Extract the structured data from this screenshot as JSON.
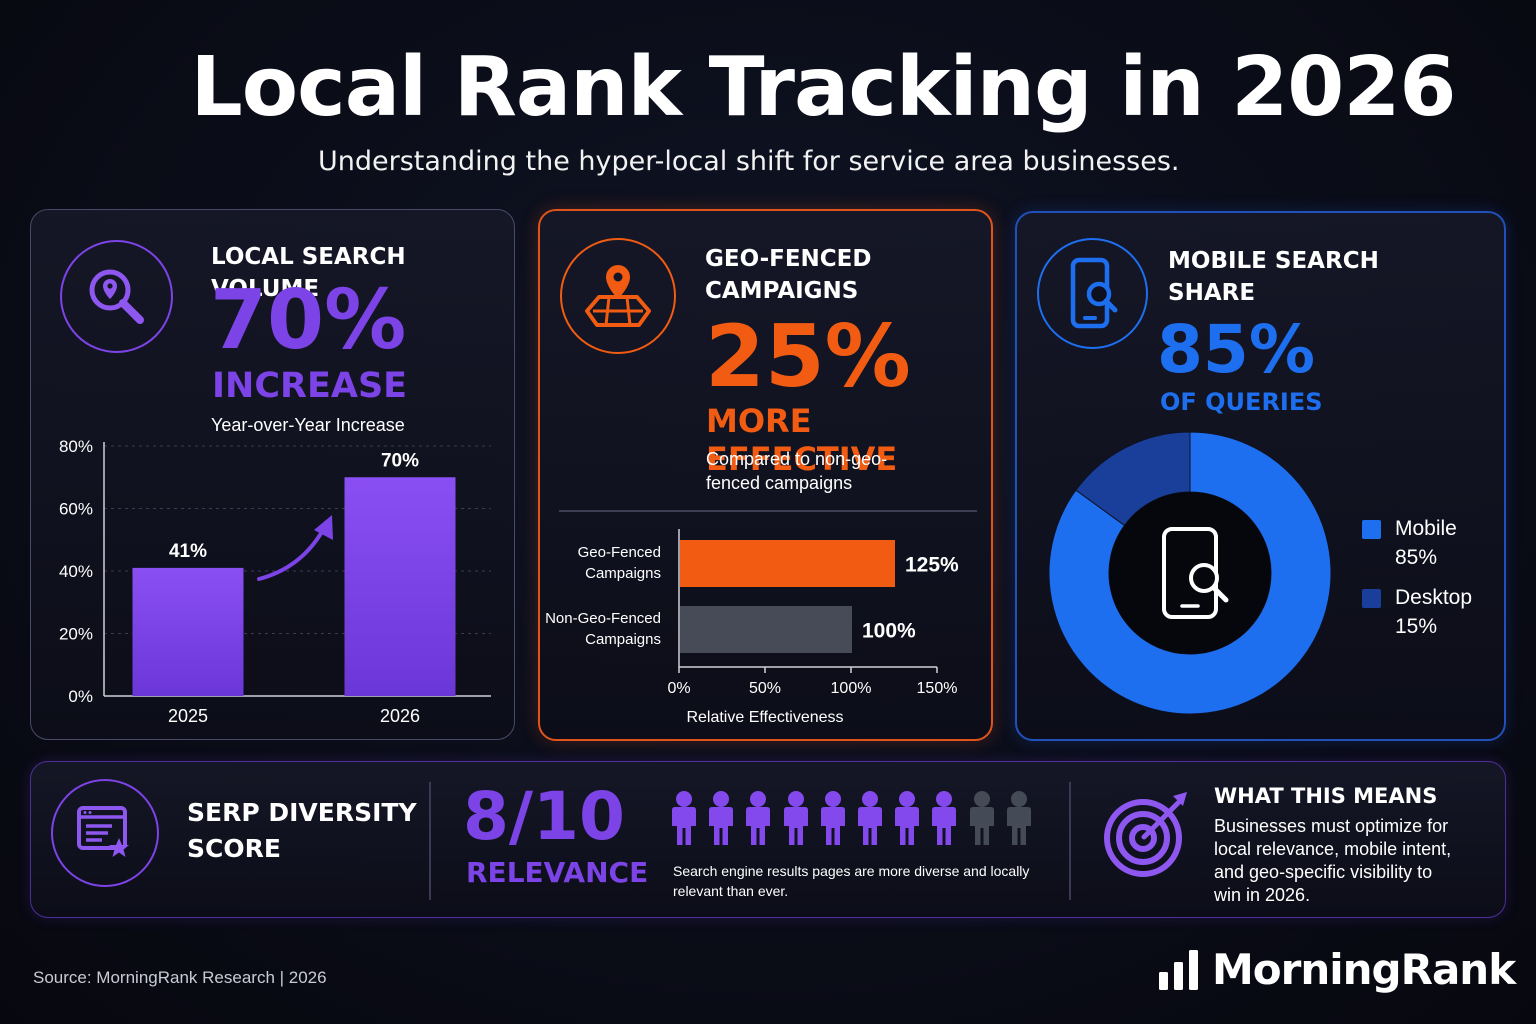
{
  "header": {
    "title": "Local Rank Tracking in 2026",
    "subtitle": "Understanding the hyper-local shift for service area businesses."
  },
  "colors": {
    "purple": "#7c43e6",
    "orange": "#f25c12",
    "blue": "#1e6ff0",
    "dark_blue": "#1a3f9a",
    "gray_bar": "#474b57"
  },
  "search_volume": {
    "icon": "search-location-icon",
    "heading": "LOCAL SEARCH VOLUME",
    "big_value": "70%",
    "big_label": "INCREASE",
    "note": "Year-over-Year Increase"
  },
  "geo_fenced": {
    "icon": "map-pin-icon",
    "heading_line1": "GEO-FENCED",
    "heading_line2": "CAMPAIGNS",
    "big_value": "25%",
    "big_label": "MORE EFFECTIVE",
    "note_line1": "Compared to non-geo-",
    "note_line2": "fenced campaigns"
  },
  "mobile": {
    "icon": "mobile-search-icon",
    "heading_line1": "MOBILE SEARCH",
    "heading_line2": "SHARE",
    "big_value": "85%",
    "big_label": "OF QUERIES"
  },
  "serp": {
    "icon": "browser-star-icon",
    "heading_line1": "SERP DIVERSITY",
    "heading_line2": "SCORE",
    "big_value": "8/10",
    "big_label": "RELEVANCE",
    "score": 8,
    "total": 10,
    "note_line1": "Search engine results pages are more diverse and locally",
    "note_line2": "relevant than ever."
  },
  "means": {
    "icon": "target-icon",
    "heading": "WHAT THIS MEANS",
    "line1": "Businesses must optimize for",
    "line2": "local relevance, mobile intent,",
    "line3": "and geo-specific visibility to",
    "line4": "win in 2026."
  },
  "footer": {
    "source": "Source: MorningRank Research  |  2026",
    "brand": "MorningRank",
    "brand_icon": "bar-chart-logo-icon"
  },
  "chart_data": [
    {
      "type": "bar",
      "categories": [
        "2025",
        "2026"
      ],
      "values": [
        41,
        70
      ],
      "data_labels": [
        "41%",
        "70%"
      ],
      "yticks": [
        "0%",
        "20%",
        "40%",
        "60%",
        "80%"
      ],
      "ylim": [
        0,
        80
      ],
      "grid": true
    },
    {
      "type": "bar",
      "orientation": "horizontal",
      "categories": [
        [
          "Geo-Fenced",
          "Campaigns"
        ],
        [
          "Non-Geo-Fenced",
          "Campaigns"
        ]
      ],
      "values": [
        125,
        100
      ],
      "data_labels": [
        "125%",
        "100%"
      ],
      "xticks": [
        "0%",
        "50%",
        "100%",
        "150%"
      ],
      "xlim": [
        0,
        150
      ],
      "xlabel": "Relative Effectiveness"
    },
    {
      "type": "pie",
      "donut": true,
      "labels": [
        "Mobile",
        "Desktop"
      ],
      "values": [
        85,
        15
      ],
      "value_labels": [
        "85%",
        "15%"
      ],
      "legend": "right"
    }
  ]
}
